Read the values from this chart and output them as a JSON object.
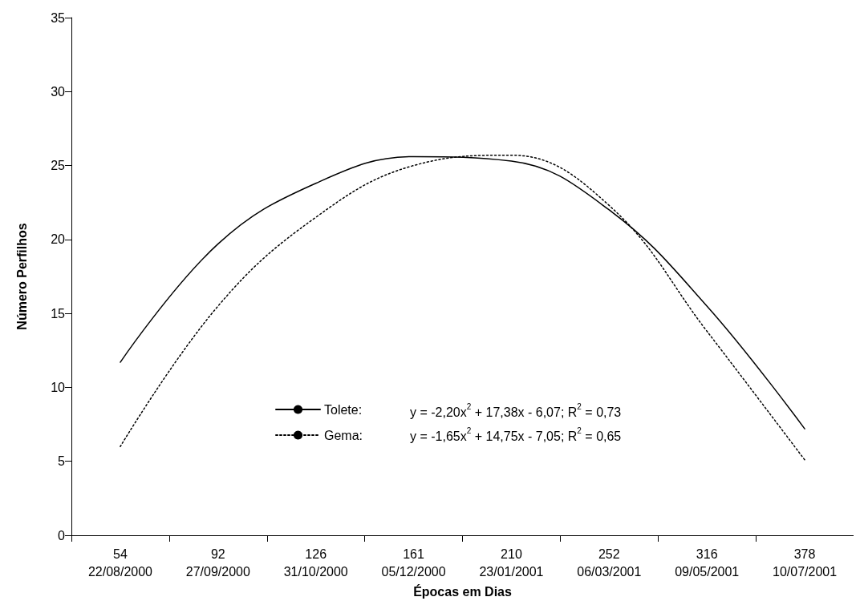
{
  "chart_data": {
    "type": "line",
    "xlabel": "Épocas em Dias",
    "ylabel": "Número Perfilhos",
    "categories": [
      "54\n22/08/2000",
      "92\n27/09/2000",
      "126\n31/10/2000",
      "161\n05/12/2000",
      "210\n23/01/2001",
      "252\n06/03/2001",
      "316\n09/05/2001",
      "378\n10/07/2001"
    ],
    "series": [
      {
        "name": "Tolete:",
        "color": "#000000",
        "line_style": "solid",
        "values": [
          11.7,
          19.7,
          23.8,
          25.6,
          25.3,
          22.0,
          15.5,
          7.2
        ]
      },
      {
        "name": "Gema:",
        "color": "#000000",
        "line_style": "dotted",
        "values": [
          6.0,
          15.5,
          21.5,
          25.0,
          25.7,
          22.3,
          13.8,
          5.1
        ]
      }
    ],
    "ylim": [
      0,
      35
    ],
    "yticks": [
      0,
      5,
      10,
      15,
      20,
      25,
      30,
      35
    ],
    "grid": false,
    "marker": "none",
    "legend": "bottom",
    "annotations": [
      "y = -2,20x$^{2}$ + 17,38x - 6,07; R$^{2}$ = 0,73",
      "y = -1,65x$^{2}$ + 14,75x - 7,05; R$^{2}$ = 0,65"
    ]
  }
}
